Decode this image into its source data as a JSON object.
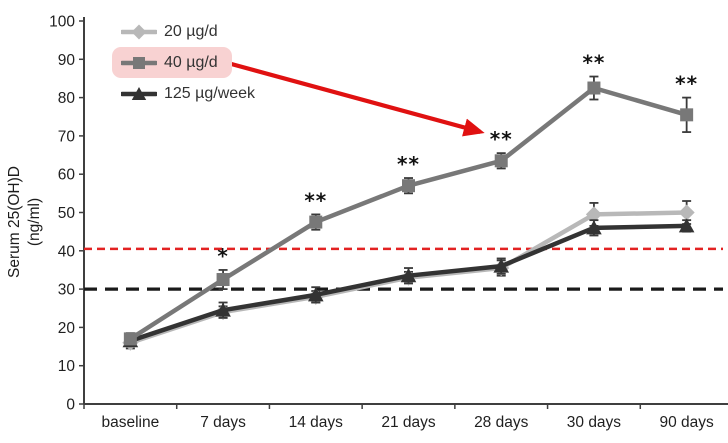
{
  "chart_data": {
    "type": "line",
    "title": "",
    "xlabel": "",
    "ylabel_line1": "Serum 25(OH)D",
    "ylabel_line2": "(ng/ml)",
    "ylim": [
      0,
      100
    ],
    "yticks": [
      0,
      10,
      20,
      30,
      40,
      50,
      60,
      70,
      80,
      90,
      100
    ],
    "categories": [
      "baseline",
      "7 days",
      "14 days",
      "21 days",
      "28 days",
      "30 days",
      "90 days"
    ],
    "series": [
      {
        "name": "20 µg/d",
        "color": "#b8b8b8",
        "marker": "diamond",
        "values": [
          16,
          24,
          28,
          33,
          35.5,
          49.5,
          50
        ],
        "errors": [
          1.5,
          1.5,
          1.5,
          1.5,
          2,
          3,
          3
        ],
        "sig": [
          "",
          "",
          "",
          "",
          "",
          "",
          ""
        ]
      },
      {
        "name": "40 µg/d",
        "color": "#787878",
        "marker": "square",
        "values": [
          17,
          32.5,
          47.5,
          57,
          63.5,
          82.5,
          75.5
        ],
        "errors": [
          1.5,
          2.5,
          2,
          2,
          2,
          3,
          4.5
        ],
        "sig": [
          "",
          "*",
          "**",
          "**",
          "**",
          "**",
          "**"
        ],
        "legend_highlight": "#f8d2d2"
      },
      {
        "name": "125 µg/week",
        "color": "#333333",
        "marker": "triangle",
        "values": [
          16.5,
          24.5,
          28.5,
          33.5,
          36,
          46,
          46.5
        ],
        "errors": [
          1,
          2,
          2,
          2,
          2,
          2,
          1.5
        ],
        "sig": [
          "",
          "",
          "",
          "",
          "",
          "",
          ""
        ]
      }
    ],
    "draw_order": [
      0,
      2,
      1
    ],
    "reference_lines": [
      {
        "value": 40.5,
        "color": "#e32222",
        "dash": "8 5",
        "width": 2.6
      },
      {
        "value": 30,
        "color": "#1a1a1a",
        "dash": "13 8",
        "width": 3.2
      }
    ],
    "error_bar_color": "#3a3a3a",
    "significance_color": "#111111",
    "annotation_arrow": {
      "color": "#e01111",
      "from": "legend item 40 µg/d",
      "to_series": "40 µg/d",
      "to_category": "28 days"
    },
    "legend_position": "top-left",
    "grid": "off"
  }
}
